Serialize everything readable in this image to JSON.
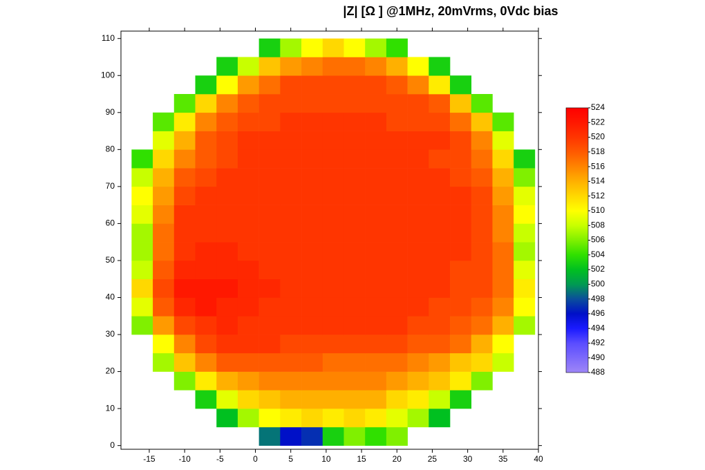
{
  "chart_data": {
    "type": "heatmap",
    "title": "|Z| [Ω ] @1MHz, 20mVrms, 0Vdc bias",
    "x": [
      -16,
      -13,
      -10,
      -7,
      -4,
      -1,
      2,
      5,
      8,
      11,
      14,
      17,
      20,
      23,
      26,
      29,
      32,
      35,
      38
    ],
    "y": [
      2.5,
      7.5,
      12.5,
      17.5,
      22.5,
      27.5,
      32.5,
      37.5,
      42.5,
      47.5,
      52.5,
      57.5,
      62.5,
      67.5,
      72.5,
      77.5,
      82.5,
      87.5,
      92.5,
      97.5,
      102.5,
      107.5
    ],
    "values": [
      [
        null,
        null,
        null,
        null,
        null,
        null,
        499,
        496,
        497,
        503,
        506,
        504,
        506,
        null,
        null,
        null,
        null,
        null,
        null
      ],
      [
        null,
        null,
        null,
        null,
        502,
        507,
        510,
        511,
        512,
        511,
        512,
        511,
        509,
        507,
        502,
        null,
        null,
        null,
        null
      ],
      [
        null,
        null,
        null,
        503,
        509,
        512,
        513,
        514,
        514,
        514,
        514,
        514,
        512,
        511,
        508,
        503,
        null,
        null,
        null
      ],
      [
        null,
        null,
        506,
        511,
        514,
        515,
        516,
        516,
        516,
        516,
        516,
        516,
        515,
        514,
        513,
        511,
        506,
        null,
        null
      ],
      [
        null,
        507,
        513,
        516,
        518,
        518,
        518,
        518,
        518,
        517,
        517,
        517,
        517,
        516,
        515,
        513,
        512,
        508,
        null
      ],
      [
        null,
        510,
        516,
        519,
        520,
        520,
        520,
        519,
        519,
        519,
        519,
        519,
        519,
        518,
        518,
        517,
        514,
        510,
        null
      ],
      [
        506,
        515,
        519,
        520,
        521,
        520,
        520,
        520,
        520,
        520,
        520,
        520,
        520,
        519,
        519,
        518,
        517,
        514,
        507
      ],
      [
        509,
        518,
        521,
        522,
        521,
        521,
        520,
        520,
        520,
        520,
        520,
        520,
        520,
        520,
        519,
        519,
        518,
        516,
        510
      ],
      [
        512,
        519,
        522,
        522,
        522,
        521,
        521,
        520,
        520,
        520,
        520,
        520,
        520,
        520,
        520,
        519,
        519,
        517,
        511
      ],
      [
        508,
        518,
        521,
        521,
        521,
        521,
        520,
        520,
        520,
        520,
        520,
        520,
        520,
        520,
        520,
        519,
        519,
        517,
        509
      ],
      [
        507,
        517,
        520,
        521,
        521,
        520,
        520,
        520,
        520,
        520,
        520,
        520,
        520,
        520,
        520,
        520,
        519,
        517,
        507
      ],
      [
        507,
        517,
        520,
        520,
        520,
        520,
        520,
        520,
        520,
        520,
        520,
        520,
        520,
        520,
        520,
        520,
        519,
        516,
        508
      ],
      [
        509,
        516,
        520,
        520,
        520,
        520,
        520,
        520,
        520,
        520,
        520,
        520,
        520,
        520,
        520,
        520,
        519,
        516,
        510
      ],
      [
        510,
        515,
        519,
        520,
        520,
        520,
        520,
        520,
        520,
        520,
        520,
        520,
        520,
        520,
        520,
        520,
        519,
        515,
        509
      ],
      [
        508,
        514,
        518,
        519,
        520,
        520,
        520,
        520,
        520,
        520,
        520,
        520,
        520,
        520,
        520,
        519,
        518,
        514,
        506
      ],
      [
        504,
        512,
        516,
        518,
        519,
        520,
        520,
        520,
        520,
        520,
        520,
        520,
        520,
        520,
        519,
        519,
        517,
        512,
        503
      ],
      [
        null,
        509,
        514,
        518,
        519,
        520,
        520,
        520,
        520,
        520,
        520,
        520,
        520,
        520,
        520,
        519,
        516,
        509,
        null
      ],
      [
        null,
        505,
        511,
        516,
        518,
        519,
        519,
        520,
        520,
        520,
        520,
        520,
        519,
        519,
        519,
        517,
        513,
        505,
        null
      ],
      [
        null,
        null,
        505,
        512,
        516,
        518,
        519,
        519,
        519,
        519,
        519,
        519,
        519,
        519,
        518,
        513,
        505,
        null,
        null
      ],
      [
        null,
        null,
        null,
        503,
        510,
        515,
        517,
        519,
        519,
        519,
        519,
        519,
        518,
        516,
        511,
        503,
        null,
        null,
        null
      ],
      [
        null,
        null,
        null,
        null,
        503,
        508,
        513,
        515,
        516,
        517,
        517,
        516,
        514,
        510,
        503,
        null,
        null,
        null,
        null
      ],
      [
        null,
        null,
        null,
        null,
        null,
        null,
        503,
        507,
        510,
        512,
        510,
        507,
        504,
        null,
        null,
        null,
        null,
        null,
        null
      ]
    ],
    "xlim": [
      -19,
      40
    ],
    "ylim": [
      -1,
      112
    ],
    "xticks": [
      -15,
      -10,
      -5,
      0,
      5,
      10,
      15,
      20,
      25,
      30,
      35,
      40
    ],
    "yticks": [
      0,
      10,
      20,
      30,
      40,
      50,
      60,
      70,
      80,
      90,
      100,
      110
    ],
    "zlim": [
      488,
      524
    ],
    "zticks": [
      488,
      490,
      492,
      494,
      496,
      498,
      500,
      502,
      504,
      506,
      508,
      510,
      512,
      514,
      516,
      518,
      520,
      522,
      524
    ],
    "colorscale": [
      {
        "value": 488,
        "color": "#9e86f7"
      },
      {
        "value": 492,
        "color": "#5a4cff"
      },
      {
        "value": 494,
        "color": "#1a1aff"
      },
      {
        "value": 496,
        "color": "#0010c8"
      },
      {
        "value": 498,
        "color": "#0a4e9c"
      },
      {
        "value": 500,
        "color": "#009a52"
      },
      {
        "value": 502,
        "color": "#00c020"
      },
      {
        "value": 504,
        "color": "#30e000"
      },
      {
        "value": 506,
        "color": "#80f000"
      },
      {
        "value": 508,
        "color": "#c8ff00"
      },
      {
        "value": 510,
        "color": "#ffff00"
      },
      {
        "value": 512,
        "color": "#ffd800"
      },
      {
        "value": 514,
        "color": "#ffb000"
      },
      {
        "value": 516,
        "color": "#ff8400"
      },
      {
        "value": 518,
        "color": "#ff5a00"
      },
      {
        "value": 520,
        "color": "#ff3500"
      },
      {
        "value": 522,
        "color": "#ff1800"
      },
      {
        "value": 524,
        "color": "#ff0000"
      }
    ]
  }
}
